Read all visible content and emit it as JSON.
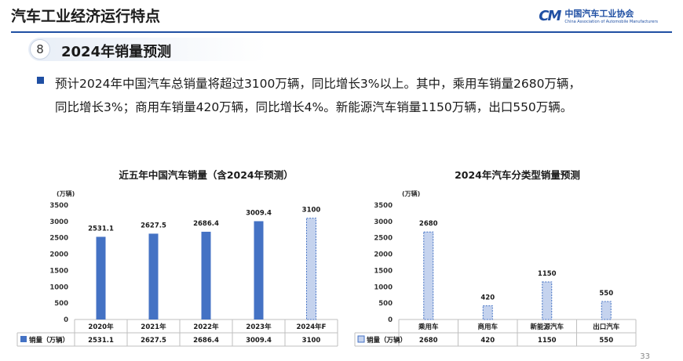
{
  "header": {
    "title": "汽车工业经济运行特点",
    "logo_mark": "CM",
    "logo_cn": "中国汽车工业协会",
    "logo_en": "China Association of Automobile Manufacturers"
  },
  "section": {
    "number": "8",
    "title": "2024年销量预测"
  },
  "summary": {
    "line1": "预计2024年中国汽车总销量将超过3100万辆，同比增长3%以上。其中，乘用车销量2680万辆，",
    "line2": "同比增长3%；商用车销量420万辆，同比增长4%。新能源汽车销量1150万辆，出口550万辆。"
  },
  "page_number": "33",
  "colors": {
    "bar": "#4472c4",
    "forecast_fill": "#c5d3ee",
    "forecast_stroke": "#4472c4",
    "rule": "#1f4fa3"
  },
  "chart_data": [
    {
      "type": "bar",
      "title": "近五年中国汽车销量（含2024年预测）",
      "unit": "(万辆)",
      "categories": [
        "2020年",
        "2021年",
        "2022年",
        "2023年",
        "2024年F"
      ],
      "series": [
        {
          "name": "销量（万辆）",
          "values": [
            2531.1,
            2627.5,
            2686.4,
            3009.4,
            3100
          ],
          "value_labels": [
            "2531.1",
            "2627.5",
            "2686.4",
            "3009.4",
            "3100"
          ]
        }
      ],
      "forecast": [
        false,
        false,
        false,
        false,
        true
      ],
      "ylim": [
        0,
        3500
      ],
      "yticks": [
        0,
        500,
        1000,
        1500,
        2000,
        2500,
        3000,
        3500
      ],
      "data_table": true
    },
    {
      "type": "bar",
      "title": "2024年汽车分类型销量预测",
      "unit": "(万辆)",
      "categories": [
        "乘用车",
        "商用车",
        "新能源汽车",
        "出口汽车"
      ],
      "series": [
        {
          "name": "销量（万辆）",
          "values": [
            2680,
            420,
            1150,
            550
          ],
          "value_labels": [
            "2680",
            "420",
            "1150",
            "550"
          ]
        }
      ],
      "forecast": [
        true,
        true,
        true,
        true
      ],
      "ylim": [
        0,
        3500
      ],
      "yticks": [
        0,
        500,
        1000,
        1500,
        2000,
        2500,
        3000,
        3500
      ],
      "data_table": true
    }
  ]
}
